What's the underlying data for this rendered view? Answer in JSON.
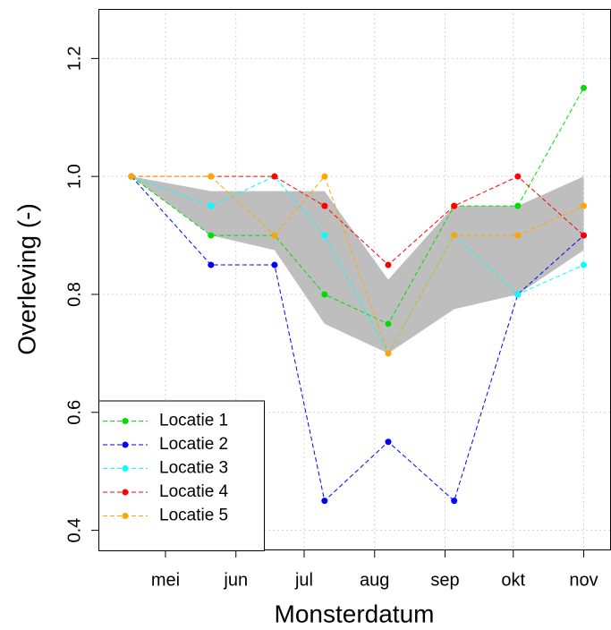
{
  "chart_data": {
    "type": "line",
    "x_label": "Monsterdatum",
    "y_label": "Overleving (-)",
    "x": [
      -15,
      20,
      48,
      70,
      98,
      127,
      155,
      184
    ],
    "xlim": [
      -29.5,
      196
    ],
    "xticks": [
      {
        "value": 0,
        "label": "mei"
      },
      {
        "value": 31,
        "label": "jun"
      },
      {
        "value": 61,
        "label": "jul"
      },
      {
        "value": 92,
        "label": "aug"
      },
      {
        "value": 123,
        "label": "sep"
      },
      {
        "value": 153,
        "label": "okt"
      },
      {
        "value": 184,
        "label": "nov"
      }
    ],
    "ylim": [
      0.366,
      1.284
    ],
    "yticks": [
      0.4,
      0.6,
      0.8,
      1.0,
      1.2
    ],
    "yticks_labels": [
      "0.4",
      "0.6",
      "0.8",
      "1.0",
      "1.2"
    ],
    "grid": true,
    "legend": "bottomleft",
    "band": {
      "color": "#bebebe",
      "upper": [
        1.0,
        0.975,
        0.975,
        0.975,
        0.825,
        0.95,
        0.95,
        1.0
      ],
      "lower": [
        1.0,
        0.9,
        0.875,
        0.75,
        0.7,
        0.775,
        0.8,
        0.875
      ]
    },
    "series": [
      {
        "name": "Locatie 1",
        "color": "#00dd00",
        "values": [
          1.0,
          0.9,
          0.9,
          0.8,
          0.75,
          0.95,
          0.95,
          1.15
        ]
      },
      {
        "name": "Locatie 2",
        "color": "#0000ff",
        "values": [
          1.0,
          0.85,
          0.85,
          0.45,
          0.55,
          0.45,
          0.8,
          0.9
        ]
      },
      {
        "name": "Locatie 3",
        "color": "#00ffff",
        "values": [
          1.0,
          0.95,
          1.0,
          0.9,
          0.7,
          0.9,
          0.8,
          0.85
        ]
      },
      {
        "name": "Locatie 4",
        "color": "#ff0000",
        "values": [
          1.0,
          1.0,
          1.0,
          0.95,
          0.85,
          0.95,
          1.0,
          0.9
        ]
      },
      {
        "name": "Locatie 5",
        "color": "#ffa500",
        "values": [
          1.0,
          1.0,
          0.9,
          1.0,
          0.7,
          0.9,
          0.9,
          0.95
        ]
      }
    ]
  }
}
